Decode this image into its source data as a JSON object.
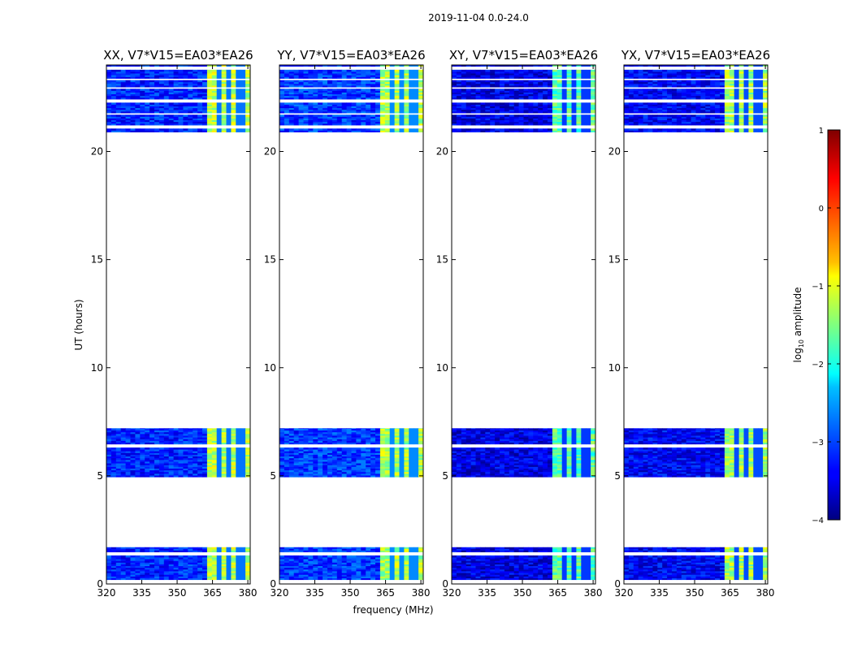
{
  "figure": {
    "suptitle": "2019-11-04 0.0-24.0",
    "xlabel": "frequency (MHz)",
    "ylabel": "UT (hours)"
  },
  "colorbar": {
    "label": "log10 amplitude",
    "label_main": "log",
    "label_sub": "10",
    "label_tail": " amplitude",
    "range": [
      -4,
      1
    ],
    "ticks": [
      1,
      0,
      -1,
      -2,
      -3,
      -4
    ],
    "tick_labels": [
      "1",
      "0",
      "−1",
      "−2",
      "−3",
      "−4"
    ],
    "colormap": "jet"
  },
  "chart_data": [
    {
      "type": "heatmap",
      "title": "XX, V7*V15=EA03*EA26",
      "xlabel": "",
      "ylabel": "UT (hours)",
      "xlim": [
        320,
        381
      ],
      "ylim": [
        0,
        24
      ],
      "xticks": [
        320,
        335,
        350,
        365,
        380
      ],
      "yticks": [
        0,
        5,
        10,
        15,
        20
      ],
      "time_blocks": [
        {
          "t_start": 0.2,
          "t_end": 1.7,
          "gaps": [
            1.35
          ]
        },
        {
          "t_start": 4.95,
          "t_end": 7.2,
          "gaps": [
            6.35
          ]
        },
        {
          "t_start": 20.9,
          "t_end": 24.0,
          "gaps": [
            21.1,
            21.7,
            22.3,
            22.9,
            23.3,
            23.85
          ]
        }
      ],
      "background_log_amplitude": -3.2,
      "rfi_band_MHz": [
        363,
        380
      ],
      "rfi_log_amplitude": -1.2,
      "rfi_gap_lines_MHz": [
        367.5,
        372.5,
        377
      ]
    },
    {
      "type": "heatmap",
      "title": "YY, V7*V15=EA03*EA26",
      "xlabel": "frequency (MHz)",
      "ylabel": "",
      "xlim": [
        320,
        381
      ],
      "ylim": [
        0,
        24
      ],
      "xticks": [
        320,
        335,
        350,
        365,
        380
      ],
      "yticks": [
        0,
        5,
        10,
        15,
        20
      ],
      "time_blocks": [
        {
          "t_start": 0.2,
          "t_end": 1.7,
          "gaps": [
            1.35
          ]
        },
        {
          "t_start": 4.95,
          "t_end": 7.2,
          "gaps": [
            6.35
          ]
        },
        {
          "t_start": 20.9,
          "t_end": 24.0,
          "gaps": [
            21.1,
            21.7,
            22.3,
            22.9,
            23.3,
            23.85
          ]
        }
      ],
      "background_log_amplitude": -3.1,
      "rfi_band_MHz": [
        363,
        380
      ],
      "rfi_log_amplitude": -1.3,
      "rfi_gap_lines_MHz": [
        367.5,
        372.5,
        377
      ]
    },
    {
      "type": "heatmap",
      "title": "XY, V7*V15=EA03*EA26",
      "xlabel": "",
      "ylabel": "",
      "xlim": [
        320,
        381
      ],
      "ylim": [
        0,
        24
      ],
      "xticks": [
        320,
        335,
        350,
        365,
        380
      ],
      "yticks": [
        0,
        5,
        10,
        15,
        20
      ],
      "time_blocks": [
        {
          "t_start": 0.2,
          "t_end": 1.7,
          "gaps": [
            1.35
          ]
        },
        {
          "t_start": 4.95,
          "t_end": 7.2,
          "gaps": [
            6.35
          ]
        },
        {
          "t_start": 20.9,
          "t_end": 24.0,
          "gaps": [
            21.1,
            21.7,
            22.3,
            22.9,
            23.3,
            23.85
          ]
        }
      ],
      "background_log_amplitude": -3.5,
      "rfi_band_MHz": [
        363,
        380
      ],
      "rfi_log_amplitude": -1.7,
      "rfi_gap_lines_MHz": [
        367.5,
        372.5,
        377
      ]
    },
    {
      "type": "heatmap",
      "title": "YX, V7*V15=EA03*EA26",
      "xlabel": "",
      "ylabel": "",
      "xlim": [
        320,
        381
      ],
      "ylim": [
        0,
        24
      ],
      "xticks": [
        320,
        335,
        350,
        365,
        380
      ],
      "yticks": [
        0,
        5,
        10,
        15,
        20
      ],
      "time_blocks": [
        {
          "t_start": 0.2,
          "t_end": 1.7,
          "gaps": [
            1.35
          ]
        },
        {
          "t_start": 4.95,
          "t_end": 7.2,
          "gaps": [
            6.35
          ]
        },
        {
          "t_start": 20.9,
          "t_end": 24.0,
          "gaps": [
            21.1,
            21.7,
            22.3,
            22.9,
            23.3,
            23.85
          ]
        }
      ],
      "background_log_amplitude": -3.4,
      "rfi_band_MHz": [
        363,
        380
      ],
      "rfi_log_amplitude": -1.3,
      "rfi_gap_lines_MHz": [
        367.5,
        372.5,
        377
      ]
    }
  ]
}
